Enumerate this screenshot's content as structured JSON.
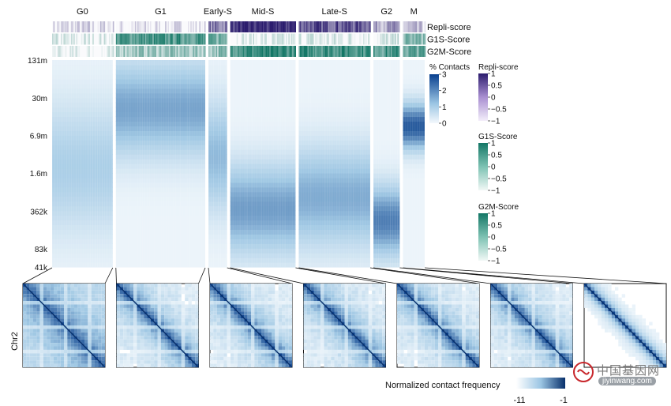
{
  "chart_data": {
    "type": "heatmap",
    "phase_labels": [
      "G0",
      "G1",
      "Early-S",
      "Mid-S",
      "Late-S",
      "G2",
      "M"
    ],
    "phase_weights": [
      78,
      115,
      24,
      84,
      92,
      34,
      28
    ],
    "annotation_rows": [
      "Repli-score",
      "G1S-Score",
      "G2M-Score"
    ],
    "annotation_levels": {
      "Repli-score": [
        0.1,
        0.05,
        0.55,
        0.95,
        0.75,
        0.4,
        0.2
      ],
      "G1S-Score": [
        0.05,
        0.75,
        0.6,
        0.05,
        0.1,
        0.1,
        0.5
      ],
      "G2M-Score": [
        0.0,
        0.4,
        0.45,
        0.85,
        0.85,
        0.75,
        0.65
      ]
    },
    "y_tick_labels": [
      "131m",
      "30m",
      "6.9m",
      "1.6m",
      "362k",
      "83k",
      "41k"
    ],
    "y_tick_positions_log10": [
      8.117,
      7.477,
      6.839,
      6.204,
      5.559,
      4.919,
      4.613
    ],
    "y_range_log10": [
      4.613,
      8.117
    ],
    "contact_legend": {
      "title": "% Contacts",
      "ticks": [
        "3",
        "2",
        "1",
        "0"
      ],
      "range": [
        0,
        3
      ]
    },
    "score_legends": [
      {
        "title": "Repli-score",
        "ticks": [
          "1",
          "0.5",
          "0",
          "−0.5",
          "−1"
        ],
        "color": "#3b2a80"
      },
      {
        "title": "G1S-Score",
        "ticks": [
          "1",
          "0.5",
          "0",
          "−0.5",
          "−1"
        ],
        "color": "#1e8a7a"
      },
      {
        "title": "G2M-Score",
        "ticks": [
          "1",
          "0.5",
          "0",
          "−0.5",
          "−1"
        ],
        "color": "#1e8a7a"
      }
    ],
    "peak_contact_log10": [
      6.3,
      7.3,
      6.5,
      5.6,
      5.8,
      5.4,
      7.0
    ],
    "peak_sharpness": [
      0.15,
      0.5,
      0.35,
      0.55,
      0.45,
      0.75,
      1.0
    ],
    "matrix_panels": 7,
    "matrix_ylabel": "Chr2",
    "matrix_legend": {
      "title": "Normalized contact frequency",
      "min_label": "-11",
      "max_label": "-1"
    }
  },
  "watermark": {
    "text": "中国基因网",
    "url": "jiyinwang.com"
  }
}
